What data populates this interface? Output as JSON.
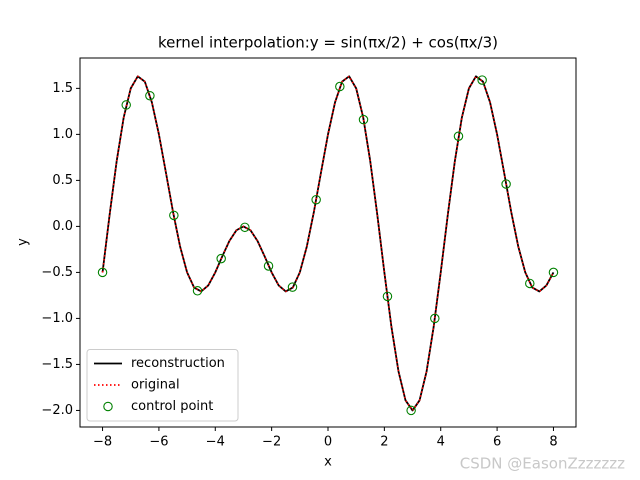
{
  "chart_data": {
    "type": "line",
    "title": "kernel interpolation:y = sin(πx/2) + cos(πx/3)",
    "xlabel": "x",
    "ylabel": "y",
    "xlim": [
      -8.8,
      8.8
    ],
    "ylim": [
      -2.18,
      1.83
    ],
    "xticks": [
      {
        "value": -8,
        "label": "−8"
      },
      {
        "value": -6,
        "label": "−6"
      },
      {
        "value": -4,
        "label": "−4"
      },
      {
        "value": -2,
        "label": "−2"
      },
      0,
      2,
      4,
      6,
      8
    ],
    "yticks": [
      {
        "value": -2,
        "label": "−2.0"
      },
      {
        "value": -1.5,
        "label": "−1.5"
      },
      {
        "value": -1,
        "label": "−1.0"
      },
      {
        "value": -0.5,
        "label": "−0.5"
      },
      {
        "value": 0,
        "label": "0.0"
      },
      {
        "value": 0.5,
        "label": "0.5"
      },
      {
        "value": 1,
        "label": "1.0"
      },
      {
        "value": 1.5,
        "label": "1.5"
      }
    ],
    "legend": "lower left",
    "series": [
      {
        "name": "reconstruction",
        "color": "#000000",
        "style": "solid",
        "x": [
          -8,
          -7.75,
          -7.5,
          -7.25,
          -7,
          -6.75,
          -6.5,
          -6.25,
          -6,
          -5.75,
          -5.5,
          -5.25,
          -5,
          -4.75,
          -4.5,
          -4.25,
          -4,
          -3.75,
          -3.5,
          -3.25,
          -3,
          -2.75,
          -2.5,
          -2.25,
          -2,
          -1.75,
          -1.5,
          -1.25,
          -1,
          -0.75,
          -0.5,
          -0.25,
          0,
          0.25,
          0.5,
          0.75,
          1,
          1.25,
          1.5,
          1.75,
          2,
          2.25,
          2.5,
          2.75,
          3,
          3.25,
          3.5,
          3.75,
          4,
          4.25,
          4.5,
          4.75,
          5,
          5.25,
          5.5,
          5.75,
          6,
          6.25,
          6.5,
          6.75,
          7,
          7.25,
          7.5,
          7.75,
          8
        ],
        "values": [
          -0.5,
          0.1239,
          0.7071,
          1.1827,
          1.5,
          1.631,
          1.5731,
          1.3486,
          1,
          0.5832,
          0.1589,
          -0.2168,
          -0.5,
          -0.6651,
          -0.7071,
          -0.6415,
          -0.5,
          -0.3244,
          -0.1589,
          -0.042,
          0,
          -0.042,
          -0.1589,
          -0.3244,
          -0.5,
          -0.6415,
          -0.7071,
          -0.6651,
          -0.5,
          -0.2168,
          0.1589,
          0.5832,
          1,
          1.3486,
          1.5731,
          1.631,
          1.5,
          1.1827,
          0.7071,
          0.1239,
          -0.5,
          -1.0898,
          -1.5731,
          -1.8898,
          -2,
          -1.8898,
          -1.5731,
          -1.0898,
          -0.5,
          0.1239,
          0.7071,
          1.1827,
          1.5,
          1.631,
          1.5731,
          1.3486,
          1,
          0.5832,
          0.1589,
          -0.2168,
          -0.5,
          -0.6651,
          -0.7071,
          -0.6415,
          -0.5
        ]
      },
      {
        "name": "original",
        "color": "#ff0000",
        "style": "dotted",
        "x": [
          -8,
          -7.75,
          -7.5,
          -7.25,
          -7,
          -6.75,
          -6.5,
          -6.25,
          -6,
          -5.75,
          -5.5,
          -5.25,
          -5,
          -4.75,
          -4.5,
          -4.25,
          -4,
          -3.75,
          -3.5,
          -3.25,
          -3,
          -2.75,
          -2.5,
          -2.25,
          -2,
          -1.75,
          -1.5,
          -1.25,
          -1,
          -0.75,
          -0.5,
          -0.25,
          0,
          0.25,
          0.5,
          0.75,
          1,
          1.25,
          1.5,
          1.75,
          2,
          2.25,
          2.5,
          2.75,
          3,
          3.25,
          3.5,
          3.75,
          4,
          4.25,
          4.5,
          4.75,
          5,
          5.25,
          5.5,
          5.75,
          6,
          6.25,
          6.5,
          6.75,
          7,
          7.25,
          7.5,
          7.75,
          8
        ],
        "values": [
          -0.5,
          0.1239,
          0.7071,
          1.1827,
          1.5,
          1.631,
          1.5731,
          1.3486,
          1,
          0.5832,
          0.1589,
          -0.2168,
          -0.5,
          -0.6651,
          -0.7071,
          -0.6415,
          -0.5,
          -0.3244,
          -0.1589,
          -0.042,
          0,
          -0.042,
          -0.1589,
          -0.3244,
          -0.5,
          -0.6415,
          -0.7071,
          -0.6651,
          -0.5,
          -0.2168,
          0.1589,
          0.5832,
          1,
          1.3486,
          1.5731,
          1.631,
          1.5,
          1.1827,
          0.7071,
          0.1239,
          -0.5,
          -1.0898,
          -1.5731,
          -1.8898,
          -2,
          -1.8898,
          -1.5731,
          -1.0898,
          -0.5,
          0.1239,
          0.7071,
          1.1827,
          1.5,
          1.631,
          1.5731,
          1.3486,
          1,
          0.5832,
          0.1589,
          -0.2168,
          -0.5,
          -0.6651,
          -0.7071,
          -0.6415,
          -0.5
        ]
      },
      {
        "name": "control point",
        "color": "#008000",
        "style": "marker",
        "x": [
          -8,
          -7.16,
          -6.32,
          -5.47,
          -4.63,
          -3.79,
          -2.95,
          -2.11,
          -1.26,
          -0.42,
          0.42,
          1.26,
          2.11,
          2.95,
          3.79,
          4.63,
          5.47,
          6.32,
          7.16,
          8
        ],
        "values": [
          -0.5,
          1.32,
          1.42,
          0.12,
          -0.7,
          -0.35,
          -0.01,
          -0.43,
          -0.66,
          0.29,
          1.52,
          1.16,
          -0.76,
          -2,
          -1,
          0.98,
          1.59,
          0.46,
          -0.62,
          -0.5
        ]
      }
    ]
  },
  "watermark": "CSDN @EasonZzzzzzz"
}
